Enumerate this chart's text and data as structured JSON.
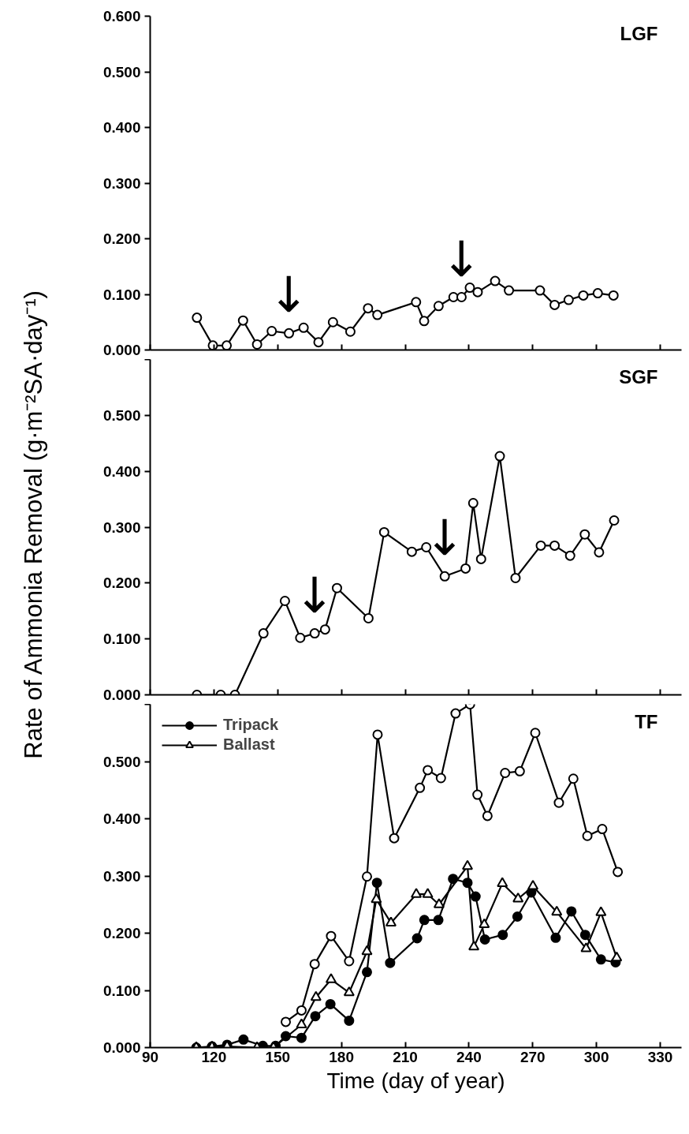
{
  "chart_data": [
    {
      "type": "line",
      "title": "LGF",
      "marker": "circle",
      "grid": false,
      "tick_labels": "y",
      "xlim": [
        90,
        340
      ],
      "xticks": [
        90,
        120,
        150,
        180,
        210,
        240,
        270,
        300,
        330
      ],
      "ylim": [
        0,
        0.6
      ],
      "yticks": [
        {
          "value": 0,
          "label": "0.000"
        },
        {
          "value": 0.1,
          "label": "0.100"
        },
        {
          "value": 0.2,
          "label": "0.200"
        },
        {
          "value": 0.3,
          "label": "0.300"
        },
        {
          "value": 0.4,
          "label": "0.400"
        },
        {
          "value": 0.5,
          "label": "0.500"
        },
        {
          "value": 0.6,
          "label": "0.600"
        }
      ],
      "annotations": [
        {
          "text": "↓",
          "x": 155.3,
          "y": 0.03
        },
        {
          "text": "↓",
          "x": 236.5,
          "y": 0.095
        }
      ],
      "series": [
        {
          "color": "#ffffff",
          "x": [
            112,
            119.5,
            126,
            133.7,
            140.3,
            147.2,
            155.3,
            162.2,
            169.2,
            176,
            184.2,
            192.5,
            196.9,
            215.1,
            218.9,
            225.7,
            232.7,
            236.5,
            240.4,
            244.1,
            252.3,
            258.8,
            273.4,
            280.3,
            286.9,
            293.8,
            300.6,
            308
          ],
          "values": [
            0.058,
            0.008,
            0.008,
            0.053,
            0.01,
            0.034,
            0.03,
            0.04,
            0.014,
            0.05,
            0.033,
            0.075,
            0.063,
            0.086,
            0.052,
            0.079,
            0.095,
            0.095,
            0.112,
            0.104,
            0.124,
            0.107,
            0.107,
            0.081,
            0.09,
            0.098,
            0.102,
            0.098
          ]
        }
      ]
    },
    {
      "type": "line",
      "title": "SGF",
      "ylabel": "Rate of Ammonia Removal (g·m⁻²SA·day⁻¹)",
      "marker": "circle",
      "grid": false,
      "tick_labels": "y",
      "xlim": [
        90,
        340
      ],
      "xticks": [
        90,
        120,
        150,
        180,
        210,
        240,
        270,
        300,
        330
      ],
      "ylim": [
        0,
        0.6
      ],
      "yticks": [
        {
          "value": 0,
          "label": "0.000"
        },
        {
          "value": 0.1,
          "label": "0.100"
        },
        {
          "value": 0.2,
          "label": "0.200"
        },
        {
          "value": 0.3,
          "label": "0.300"
        },
        {
          "value": 0.4,
          "label": "0.400"
        },
        {
          "value": 0.5,
          "label": "0.500"
        },
        {
          "value": 0.6,
          "label": null
        }
      ],
      "annotations": [
        {
          "text": "↓",
          "x": 167.4,
          "y": 0.11
        },
        {
          "text": "↓",
          "x": 228.6,
          "y": 0.212
        }
      ],
      "series": [
        {
          "color": "#ffffff",
          "x": [
            112,
            123.2,
            129.9,
            143.3,
            153.4,
            160.6,
            167.4,
            172.3,
            177.9,
            192.7,
            200.1,
            213.1,
            219.9,
            228.6,
            238.4,
            242,
            245.7,
            254.5,
            261.9,
            273.8,
            280.3,
            287.6,
            294.5,
            301.2,
            308.3
          ],
          "values": [
            0,
            0,
            0,
            0.11,
            0.168,
            0.102,
            0.11,
            0.117,
            0.191,
            0.137,
            0.291,
            0.256,
            0.264,
            0.212,
            0.226,
            0.343,
            0.243,
            0.427,
            0.209,
            0.267,
            0.267,
            0.249,
            0.287,
            0.255,
            0.312
          ]
        }
      ]
    },
    {
      "type": "line",
      "title": "TF",
      "xlabel": "Time (day of year)",
      "marker": "circle",
      "grid": false,
      "legend": "top left",
      "xlim": [
        90,
        340
      ],
      "xticks": [
        90,
        120,
        150,
        180,
        210,
        240,
        270,
        300,
        330
      ],
      "ylim": [
        0,
        0.6
      ],
      "yticks": [
        {
          "value": 0,
          "label": "0.000"
        },
        {
          "value": 0.1,
          "label": "0.100"
        },
        {
          "value": 0.2,
          "label": "0.200"
        },
        {
          "value": 0.3,
          "label": "0.300"
        },
        {
          "value": 0.4,
          "label": "0.400"
        },
        {
          "value": 0.5,
          "label": "0.500"
        },
        {
          "value": 0.6,
          "label": null
        }
      ],
      "series": [
        {
          "color": "#ffffff",
          "marker": "circle",
          "x": [
            153.8,
            161.2,
            167.4,
            175.1,
            183.6,
            192,
            197,
            204.8,
            216.9,
            220.6,
            226.8,
            233.7,
            240.5,
            244,
            248.7,
            257,
            263.9,
            271.2,
            282.3,
            289.1,
            295.7,
            302.7,
            310
          ],
          "values": [
            0.045,
            0.065,
            0.146,
            0.195,
            0.151,
            0.299,
            0.547,
            0.366,
            0.454,
            0.485,
            0.471,
            0.584,
            0.6,
            0.442,
            0.405,
            0.48,
            0.483,
            0.55,
            0.428,
            0.47,
            0.37,
            0.382,
            0.307
          ]
        },
        {
          "name": "Tripack",
          "color": "#000000",
          "marker": "circle",
          "x": [
            111.7,
            119.1,
            126.2,
            133.9,
            143,
            149,
            153.8,
            161.2,
            167.7,
            174.8,
            183.6,
            192,
            196.7,
            202.9,
            215.6,
            219,
            225.6,
            232.5,
            239.3,
            243.1,
            247.5,
            255.9,
            262.8,
            269.3,
            280.8,
            288.2,
            294.7,
            302.1,
            309
          ],
          "values": [
            0,
            0.002,
            0.005,
            0.014,
            0.003,
            0.003,
            0.02,
            0.017,
            0.055,
            0.076,
            0.047,
            0.132,
            0.288,
            0.148,
            0.191,
            0.223,
            0.223,
            0.295,
            0.288,
            0.264,
            0.189,
            0.197,
            0.229,
            0.271,
            0.192,
            0.238,
            0.197,
            0.154,
            0.149
          ]
        },
        {
          "name": "Ballast",
          "color": "#ffffff",
          "marker": "triangle",
          "x": [
            111.7,
            119.1,
            126.2,
            140.3,
            148,
            161.2,
            168,
            175.1,
            183.6,
            192,
            196.4,
            203.3,
            215.2,
            220.6,
            225.9,
            239.3,
            242.3,
            247.2,
            255.7,
            263.1,
            270.1,
            281.3,
            295.1,
            302.1,
            309.5
          ],
          "values": [
            0,
            0.001,
            0.002,
            0,
            0,
            0.04,
            0.088,
            0.119,
            0.096,
            0.168,
            0.259,
            0.218,
            0.268,
            0.268,
            0.25,
            0.317,
            0.176,
            0.215,
            0.287,
            0.26,
            0.282,
            0.237,
            0.173,
            0.236,
            0.157
          ]
        }
      ]
    }
  ]
}
